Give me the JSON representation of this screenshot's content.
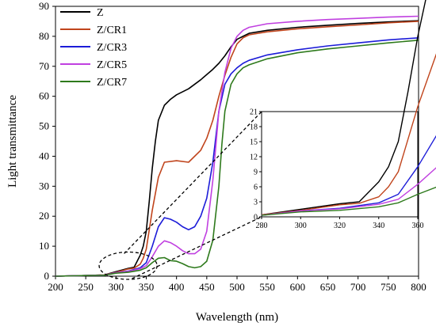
{
  "chart_data": {
    "type": "line",
    "xlabel": "Wavelength (nm)",
    "ylabel": "Light transmittance",
    "xlim": [
      200,
      800
    ],
    "ylim": [
      0,
      90
    ],
    "xticks": [
      200,
      250,
      300,
      350,
      400,
      450,
      500,
      550,
      600,
      650,
      700,
      750,
      800
    ],
    "yticks": [
      0,
      10,
      20,
      30,
      40,
      50,
      60,
      70,
      80,
      90
    ],
    "legend_position": "top-left",
    "grid": false,
    "series": [
      {
        "name": "Z",
        "color": "#000000",
        "x": [
          200,
          250,
          280,
          300,
          320,
          330,
          340,
          345,
          350,
          355,
          360,
          365,
          370,
          380,
          390,
          400,
          420,
          440,
          460,
          470,
          480,
          490,
          500,
          510,
          520,
          550,
          600,
          650,
          700,
          750,
          800
        ],
        "y": [
          0,
          0.2,
          0.4,
          1.5,
          2.6,
          3.0,
          7.0,
          10.0,
          15.0,
          25.0,
          36.0,
          45.0,
          52.0,
          57.0,
          59.0,
          60.5,
          62.5,
          65.5,
          69.0,
          71.0,
          73.5,
          76.5,
          79.0,
          80.0,
          81.0,
          82.0,
          83.0,
          83.7,
          84.3,
          84.8,
          85.2
        ]
      },
      {
        "name": "Z/CR1",
        "color": "#c0441c",
        "x": [
          200,
          250,
          280,
          300,
          320,
          330,
          340,
          345,
          350,
          360,
          370,
          380,
          400,
          420,
          440,
          450,
          460,
          470,
          480,
          490,
          500,
          510,
          520,
          550,
          600,
          650,
          700,
          750,
          800
        ],
        "y": [
          0,
          0.2,
          0.4,
          1.3,
          2.4,
          2.7,
          4.0,
          6.0,
          9.0,
          22.0,
          33.0,
          38.0,
          38.5,
          38.0,
          42.0,
          46.0,
          52.0,
          60.0,
          67.0,
          73.0,
          77.5,
          79.5,
          80.5,
          81.5,
          82.5,
          83.2,
          83.8,
          84.5,
          85.0
        ]
      },
      {
        "name": "Z/CR3",
        "color": "#1c1cd8",
        "x": [
          200,
          250,
          280,
          300,
          320,
          340,
          350,
          360,
          370,
          380,
          390,
          400,
          410,
          420,
          430,
          440,
          450,
          460,
          470,
          480,
          490,
          500,
          510,
          520,
          550,
          600,
          650,
          700,
          750,
          800
        ],
        "y": [
          0,
          0.2,
          0.3,
          1.2,
          1.7,
          2.8,
          4.5,
          10.0,
          16.5,
          19.5,
          19.0,
          18.0,
          16.5,
          15.5,
          16.5,
          20.0,
          26.0,
          38.0,
          55.0,
          64.0,
          67.5,
          69.5,
          71.0,
          72.0,
          73.8,
          75.5,
          76.8,
          77.8,
          78.8,
          79.5
        ]
      },
      {
        "name": "Z/CR5",
        "color": "#c040e0",
        "x": [
          200,
          250,
          280,
          300,
          320,
          340,
          350,
          360,
          370,
          380,
          390,
          400,
          410,
          420,
          430,
          440,
          450,
          460,
          470,
          480,
          490,
          500,
          510,
          520,
          550,
          600,
          650,
          700,
          750,
          800
        ],
        "y": [
          0,
          0.2,
          0.3,
          1.2,
          1.6,
          2.5,
          3.5,
          6.5,
          10.0,
          11.8,
          11.2,
          10.0,
          8.5,
          7.5,
          7.5,
          9.0,
          15.0,
          32.0,
          55.0,
          68.0,
          76.0,
          80.0,
          82.0,
          83.0,
          84.2,
          85.0,
          85.6,
          86.0,
          86.4,
          86.7
        ]
      },
      {
        "name": "Z/CR7",
        "color": "#2e7a1c",
        "x": [
          200,
          250,
          280,
          300,
          320,
          340,
          350,
          360,
          370,
          380,
          390,
          400,
          410,
          420,
          430,
          440,
          450,
          460,
          470,
          475,
          480,
          490,
          500,
          510,
          520,
          550,
          600,
          650,
          700,
          750,
          800
        ],
        "y": [
          0,
          0.2,
          0.3,
          1.0,
          1.3,
          2.0,
          2.8,
          4.5,
          6.0,
          6.2,
          5.2,
          5.0,
          4.2,
          3.2,
          2.8,
          3.2,
          5.0,
          12.0,
          30.0,
          44.0,
          55.0,
          64.0,
          67.5,
          69.5,
          70.5,
          72.5,
          74.5,
          75.8,
          76.8,
          77.8,
          78.7
        ]
      }
    ],
    "inset": {
      "xlim": [
        280,
        360
      ],
      "ylim": [
        0,
        21
      ],
      "xticks": [
        280,
        300,
        320,
        340,
        360
      ],
      "yticks": [
        0,
        3,
        6,
        9,
        12,
        15,
        18,
        21
      ]
    }
  }
}
